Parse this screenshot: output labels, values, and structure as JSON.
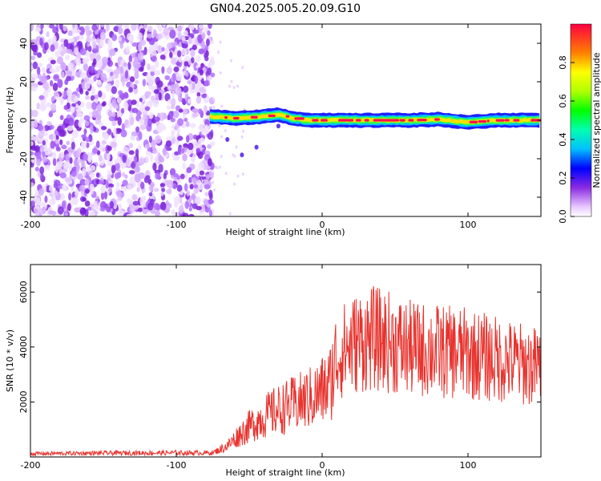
{
  "title": "GN04.2025.005.20.09.G10",
  "chart_data": [
    {
      "type": "heatmap",
      "xlabel": "Height of straight line (km)",
      "ylabel": "Frequency (Hz)",
      "xlim": [
        -200,
        150
      ],
      "ylim": [
        -50,
        50
      ],
      "x_ticks": [
        -200,
        -100,
        0,
        100
      ],
      "y_ticks": [
        -40,
        -20,
        0,
        20,
        40
      ],
      "noise_region_x": [
        -200,
        -75
      ],
      "signal_start_x": -77,
      "signal_track": [
        {
          "x": -77,
          "y": 2
        },
        {
          "x": -60,
          "y": 1
        },
        {
          "x": -40,
          "y": 2
        },
        {
          "x": -30,
          "y": 3
        },
        {
          "x": -20,
          "y": 1
        },
        {
          "x": -10,
          "y": 0
        },
        {
          "x": 0,
          "y": 0
        },
        {
          "x": 20,
          "y": 0
        },
        {
          "x": 60,
          "y": 0
        },
        {
          "x": 80,
          "y": 0.5
        },
        {
          "x": 100,
          "y": -1
        },
        {
          "x": 120,
          "y": 0
        },
        {
          "x": 150,
          "y": 0
        }
      ],
      "colorbar": {
        "label": "Normalized spectral amplitude",
        "range": [
          0,
          1
        ],
        "ticks": [
          0.0,
          0.2,
          0.4,
          0.6,
          0.8
        ]
      }
    },
    {
      "type": "line",
      "xlabel": "Height of straight line (km)",
      "ylabel": "SNR (10 * v/v)",
      "xlim": [
        -200,
        150
      ],
      "ylim": [
        0,
        7000
      ],
      "x_ticks": [
        -200,
        -100,
        0,
        100
      ],
      "y_ticks": [
        2000,
        4000,
        6000
      ],
      "color": "#e8332e",
      "series": [
        {
          "x": [
            -200,
            -150,
            -100,
            -75,
            -65,
            -55,
            -45,
            -35,
            -25,
            -15,
            -5,
            5,
            10,
            15,
            25,
            35,
            45,
            55,
            65,
            75,
            85,
            95,
            105,
            115,
            125,
            135,
            145,
            150
          ],
          "y": [
            120,
            140,
            150,
            150,
            400,
            900,
            1300,
            1600,
            1800,
            2000,
            2200,
            2600,
            3600,
            3900,
            4200,
            4300,
            4200,
            4000,
            3900,
            3900,
            3800,
            3800,
            3700,
            3600,
            3500,
            3400,
            3300,
            3300
          ]
        }
      ]
    }
  ]
}
